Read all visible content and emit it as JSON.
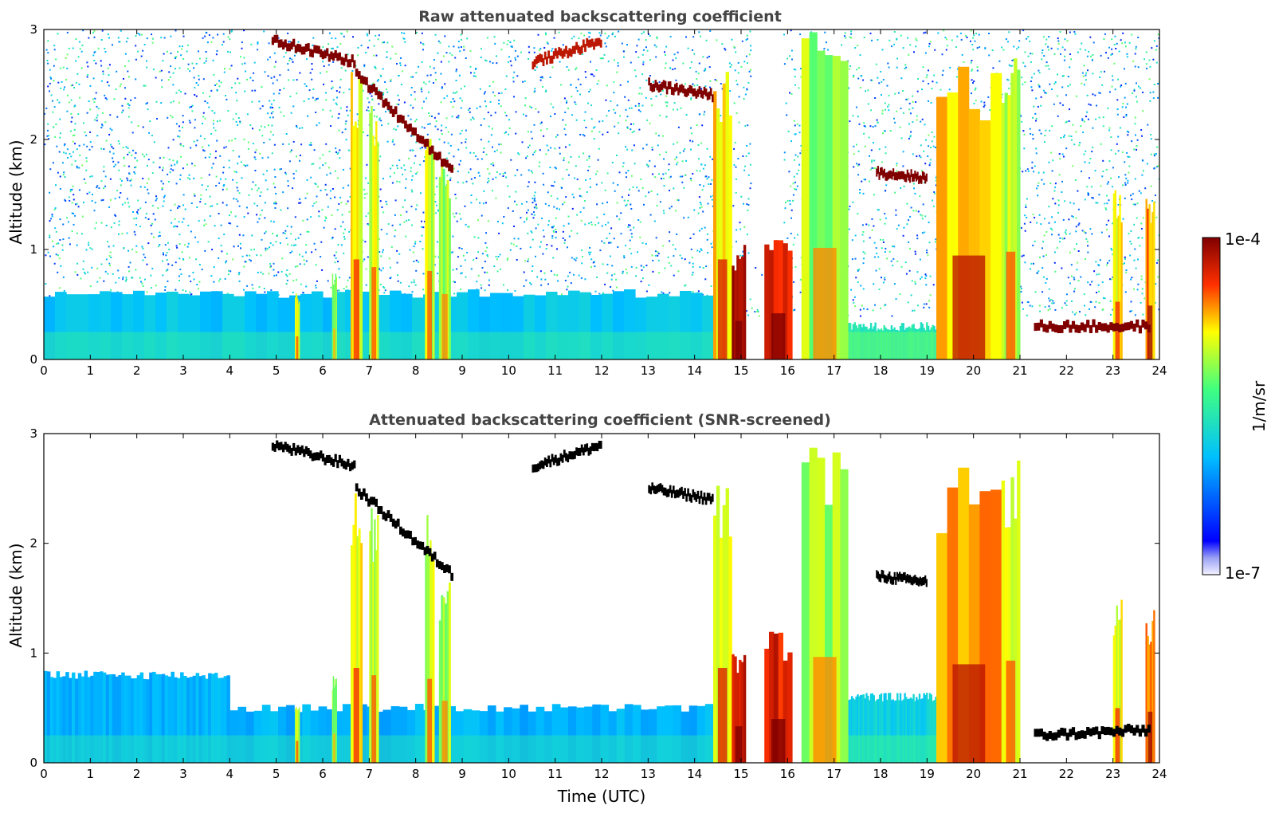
{
  "chart_data": [
    {
      "type": "heatmap",
      "title": "Raw attenuated backscattering coefficient",
      "xlabel": "",
      "ylabel": "Altitude (km)",
      "xlim": [
        0,
        24
      ],
      "ylim": [
        0,
        3
      ],
      "x_ticks": [
        "0",
        "1",
        "2",
        "3",
        "4",
        "5",
        "6",
        "7",
        "8",
        "9",
        "10",
        "11",
        "12",
        "13",
        "14",
        "15",
        "16",
        "17",
        "18",
        "19",
        "20",
        "21",
        "22",
        "23",
        "24"
      ],
      "y_ticks": [
        "0",
        "1",
        "2",
        "3"
      ],
      "background_noise_top_km": 3.0,
      "boundary_layer": [
        {
          "x": [
            0,
            14.4
          ],
          "top_km": 0.6,
          "value_log10": -5.9
        },
        {
          "x": [
            17.3,
            19.2
          ],
          "top_km": 0.3,
          "value_log10": -5.6
        }
      ],
      "precip_shafts": [
        {
          "x": [
            5.4,
            5.5
          ],
          "top_km": 0.6,
          "value_log10": -5.0
        },
        {
          "x": [
            6.2,
            6.3
          ],
          "top_km": 0.8,
          "value_log10": -5.2
        },
        {
          "x": [
            6.6,
            6.85
          ],
          "top_km": 2.6,
          "value_log10": -4.9
        },
        {
          "x": [
            7.0,
            7.2
          ],
          "top_km": 2.4,
          "value_log10": -5.0
        },
        {
          "x": [
            8.2,
            8.4
          ],
          "top_km": 2.3,
          "value_log10": -5.0
        },
        {
          "x": [
            8.5,
            8.75
          ],
          "top_km": 1.7,
          "value_log10": -5.1
        },
        {
          "x": [
            14.4,
            14.8
          ],
          "top_km": 2.6,
          "value_log10": -4.8
        },
        {
          "x": [
            14.8,
            15.1
          ],
          "top_km": 1.0,
          "value_log10": -4.2
        },
        {
          "x": [
            15.5,
            16.1
          ],
          "top_km": 1.2,
          "value_log10": -4.3
        },
        {
          "x": [
            16.3,
            17.3
          ],
          "top_km": 2.9,
          "value_log10": -5.1
        },
        {
          "x": [
            19.2,
            20.6
          ],
          "top_km": 2.7,
          "value_log10": -4.7
        },
        {
          "x": [
            20.6,
            21.0
          ],
          "top_km": 2.8,
          "value_log10": -5.0
        },
        {
          "x": [
            23.0,
            23.2
          ],
          "top_km": 1.5,
          "value_log10": -4.9
        },
        {
          "x": [
            23.7,
            23.9
          ],
          "top_km": 1.4,
          "value_log10": -4.6
        }
      ],
      "cloud_layers": [
        {
          "x": [
            4.9,
            6.7
          ],
          "base_km": [
            2.9,
            2.7
          ],
          "value_log10": -4.0
        },
        {
          "x": [
            6.7,
            8.8
          ],
          "base_km": [
            2.6,
            1.7
          ],
          "value_log10": -4.0
        },
        {
          "x": [
            10.5,
            12.0
          ],
          "base_km": [
            2.7,
            2.9
          ],
          "value_log10": -4.2
        },
        {
          "x": [
            13.0,
            14.4
          ],
          "base_km": [
            2.5,
            2.4
          ],
          "value_log10": -4.0
        },
        {
          "x": [
            17.9,
            19.0
          ],
          "base_km": [
            1.7,
            1.65
          ],
          "value_log10": -4.0
        },
        {
          "x": [
            21.3,
            23.8
          ],
          "base_km": [
            0.3,
            0.3
          ],
          "value_log10": -4.0
        }
      ]
    },
    {
      "type": "heatmap",
      "title": "Attenuated backscattering coefficient (SNR-screened)",
      "xlabel": "Time (UTC)",
      "ylabel": "Altitude (km)",
      "xlim": [
        0,
        24
      ],
      "ylim": [
        0,
        3
      ],
      "x_ticks": [
        "0",
        "1",
        "2",
        "3",
        "4",
        "5",
        "6",
        "7",
        "8",
        "9",
        "10",
        "11",
        "12",
        "13",
        "14",
        "15",
        "16",
        "17",
        "18",
        "19",
        "20",
        "21",
        "22",
        "23",
        "24"
      ],
      "y_ticks": [
        "0",
        "1",
        "2",
        "3"
      ],
      "screening": "low-SNR pixels removed; cloud layers shown in black",
      "boundary_layer": [
        {
          "x": [
            0,
            4.0
          ],
          "top_km": 0.8,
          "value_log10": -6.0
        },
        {
          "x": [
            4.0,
            14.4
          ],
          "top_km": 0.5,
          "value_log10": -6.0
        },
        {
          "x": [
            17.3,
            19.2
          ],
          "top_km": 0.6,
          "value_log10": -5.8
        }
      ],
      "cloud_layers": [
        {
          "x": [
            4.9,
            6.7
          ],
          "base_km": [
            2.9,
            2.7
          ],
          "color": "#000000"
        },
        {
          "x": [
            6.7,
            8.8
          ],
          "base_km": [
            2.5,
            1.7
          ],
          "color": "#000000"
        },
        {
          "x": [
            10.5,
            12.0
          ],
          "base_km": [
            2.7,
            2.9
          ],
          "color": "#000000"
        },
        {
          "x": [
            13.0,
            14.4
          ],
          "base_km": [
            2.5,
            2.4
          ],
          "color": "#000000"
        },
        {
          "x": [
            17.9,
            19.0
          ],
          "base_km": [
            1.7,
            1.65
          ],
          "color": "#000000"
        },
        {
          "x": [
            21.3,
            23.8
          ],
          "base_km": [
            0.25,
            0.3
          ],
          "color": "#000000"
        }
      ]
    }
  ],
  "colorbar": {
    "label": "1/m/sr",
    "max_label": "1e-4",
    "min_label": "1e-7",
    "colormap": "jet",
    "scale": "log"
  }
}
